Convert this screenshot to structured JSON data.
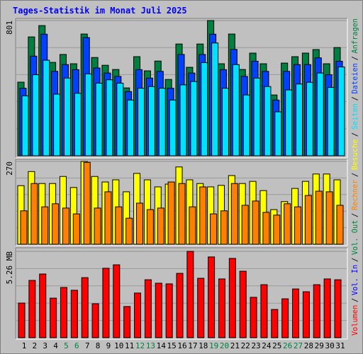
{
  "chart_data": [
    {
      "type": "bar",
      "title": "Tages-Statistik im Monat Juli 2025",
      "ylim": [
        0,
        801
      ],
      "yticks": [
        801
      ],
      "series": [
        {
          "name": "Anfragen",
          "color": "#008040",
          "values": [
            436,
            704,
            771,
            553,
            600,
            545,
            721,
            582,
            536,
            511,
            402,
            587,
            503,
            561,
            452,
            662,
            524,
            662,
            801,
            545,
            721,
            511,
            608,
            545,
            360,
            549,
            587,
            608,
            629,
            545,
            641
          ]
        },
        {
          "name": "Dateien",
          "color": "#0040ff",
          "values": [
            400,
            590,
            720,
            500,
            540,
            510,
            700,
            520,
            490,
            470,
            380,
            510,
            460,
            500,
            400,
            600,
            490,
            600,
            720,
            510,
            630,
            470,
            560,
            500,
            330,
            500,
            540,
            540,
            580,
            480,
            560
          ]
        },
        {
          "name": "Seiten",
          "color": "#00e0ff",
          "values": [
            355,
            480,
            566,
            365,
            460,
            370,
            485,
            430,
            450,
            430,
            330,
            400,
            410,
            400,
            330,
            420,
            440,
            552,
            668,
            400,
            540,
            360,
            460,
            410,
            260,
            390,
            425,
            435,
            490,
            405,
            526
          ]
        }
      ]
    },
    {
      "type": "bar",
      "ylim": [
        0,
        270
      ],
      "yticks": [
        270
      ],
      "series": [
        {
          "name": "Besuche",
          "color": "#ffff00",
          "values": [
            191,
            237,
            198,
            198,
            221,
            185,
            270,
            221,
            203,
            210,
            171,
            231,
            210,
            187,
            196,
            252,
            210,
            198,
            187,
            192,
            224,
            198,
            205,
            175,
            113,
            139,
            182,
            205,
            229,
            229,
            210
          ]
        },
        {
          "name": "Rechner",
          "color": "#ff8000",
          "values": [
            109,
            198,
            122,
            132,
            118,
            99,
            267,
            118,
            171,
            122,
            85,
            134,
            113,
            118,
            203,
            198,
            122,
            187,
            99,
            109,
            198,
            127,
            141,
            104,
            95,
            132,
            122,
            159,
            173,
            171,
            127
          ]
        }
      ]
    },
    {
      "type": "bar",
      "categories": [
        "1",
        "2",
        "3",
        "4",
        "5",
        "6",
        "7",
        "8",
        "9",
        "10",
        "11",
        "12",
        "13",
        "14",
        "15",
        "16",
        "17",
        "18",
        "19",
        "20",
        "21",
        "22",
        "23",
        "24",
        "25",
        "26",
        "27",
        "28",
        "29",
        "30",
        "31"
      ],
      "weekend": [
        false,
        false,
        false,
        false,
        true,
        true,
        false,
        false,
        false,
        false,
        false,
        true,
        true,
        false,
        false,
        false,
        false,
        false,
        true,
        true,
        false,
        false,
        false,
        false,
        false,
        true,
        true,
        false,
        false,
        false,
        false
      ],
      "weekend_color": "#008040",
      "ylim": [
        0,
        5.26
      ],
      "yticks": [
        {
          "value": 5.26,
          "label": "5.26 MB"
        }
      ],
      "series": [
        {
          "name": "Volumen",
          "color": "#ff0000",
          "values": [
            2.11,
            3.49,
            3.88,
            2.41,
            3.06,
            2.89,
            3.66,
            2.07,
            4.23,
            4.44,
            1.9,
            2.72,
            3.53,
            3.32,
            3.28,
            3.92,
            5.26,
            3.62,
            4.92,
            3.58,
            4.83,
            4.05,
            2.46,
            3.23,
            1.72,
            2.37,
            2.97,
            2.8,
            3.23,
            3.58,
            3.53
          ]
        }
      ],
      "legend_extra": [
        {
          "name": "Vol. In",
          "color": "#0000ff"
        },
        {
          "name": "Vol. Out",
          "color": "#008040"
        }
      ],
      "legend_separator": "/"
    }
  ]
}
